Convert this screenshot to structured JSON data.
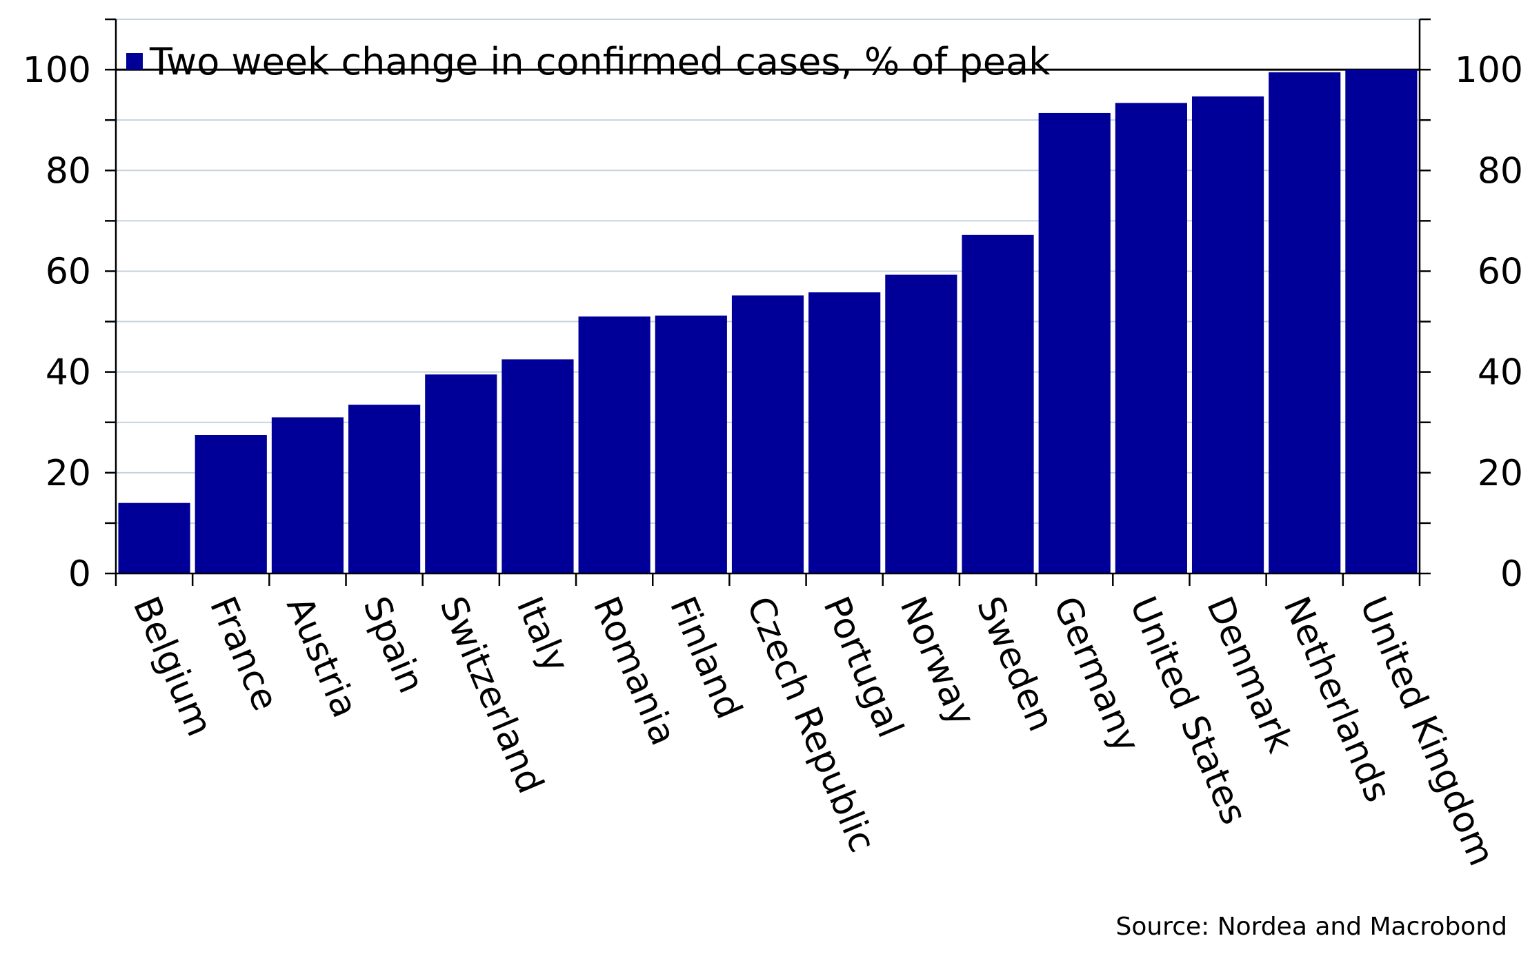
{
  "chart_data": {
    "type": "bar",
    "categories": [
      "Belgium",
      "France",
      "Austria",
      "Spain",
      "Switzerland",
      "Italy",
      "Romania",
      "Finland",
      "Czech Republic",
      "Portugal",
      "Norway",
      "Sweden",
      "Germany",
      "United States",
      "Denmark",
      "Netherlands",
      "United Kingdom"
    ],
    "series": [
      {
        "name": "Two week change in confirmed cases, % of peak",
        "values": [
          14,
          27.5,
          31,
          33.5,
          39.5,
          42.5,
          51,
          51.2,
          55.2,
          55.8,
          59.3,
          67.2,
          91.4,
          93.4,
          94.7,
          99.5,
          100
        ],
        "color": "#000099"
      }
    ],
    "ylim": [
      0,
      110
    ],
    "yticks": [
      0,
      20,
      40,
      60,
      80,
      100
    ],
    "ytick_labels": [
      "0",
      "20",
      "40",
      "60",
      "80",
      "100"
    ],
    "grid": true,
    "legend_position": "top-left",
    "secondary_y_axis": true
  },
  "source": "Source: Nordea and Macrobond"
}
